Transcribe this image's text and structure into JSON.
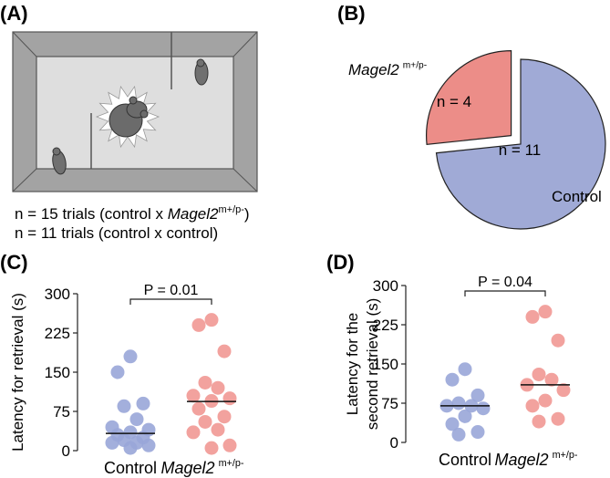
{
  "panel_labels": [
    "(A)",
    "(B)",
    "(C)",
    "(D)"
  ],
  "panel_a": {
    "lines": [
      [
        "n = 15 trials (control x ",
        "Magel2",
        "m+/p-",
        ")"
      ],
      [
        "n = 11 trials (control x control)"
      ]
    ]
  },
  "chart_data": [
    {
      "type": "pie",
      "categories": [
        "Control",
        "Magel2"
      ],
      "superscript": "m+/p-",
      "values": [
        11,
        4
      ],
      "value_labels": [
        "n = 11",
        "n = 4"
      ],
      "colors": [
        "#a0aad6",
        "#ec8d88"
      ]
    },
    {
      "type": "strip",
      "ylabel": [
        "Latency for retrieval (s)"
      ],
      "annotation": "P = 0.01",
      "superscript": "m+/p-",
      "ylim": [
        0,
        300
      ],
      "yticks": [
        0,
        75,
        150,
        225,
        300
      ],
      "series": [
        {
          "name": "Control",
          "color": "#99a6d8",
          "values": [
            180,
            150,
            90,
            85,
            60,
            45,
            40,
            35,
            30,
            25,
            20,
            15,
            15,
            10,
            5
          ]
        },
        {
          "name": "Magel2",
          "color": "#f19893",
          "values": [
            250,
            240,
            190,
            130,
            120,
            105,
            100,
            95,
            80,
            65,
            55,
            40,
            35,
            10,
            5
          ]
        }
      ],
      "medians": [
        33,
        94
      ]
    },
    {
      "type": "strip",
      "ylabel": [
        "Latency for the",
        "second retrieval (s)"
      ],
      "annotation": "P = 0.04",
      "superscript": "m+/p-",
      "ylim": [
        0,
        300
      ],
      "yticks": [
        0,
        75,
        150,
        225,
        300
      ],
      "series": [
        {
          "name": "Control",
          "color": "#99a6d8",
          "values": [
            140,
            120,
            90,
            75,
            70,
            70,
            65,
            50,
            35,
            20,
            15
          ]
        },
        {
          "name": "Magel2",
          "color": "#f19893",
          "values": [
            250,
            240,
            195,
            130,
            120,
            110,
            100,
            80,
            70,
            45,
            40
          ]
        }
      ],
      "medians": [
        70,
        110
      ]
    }
  ]
}
